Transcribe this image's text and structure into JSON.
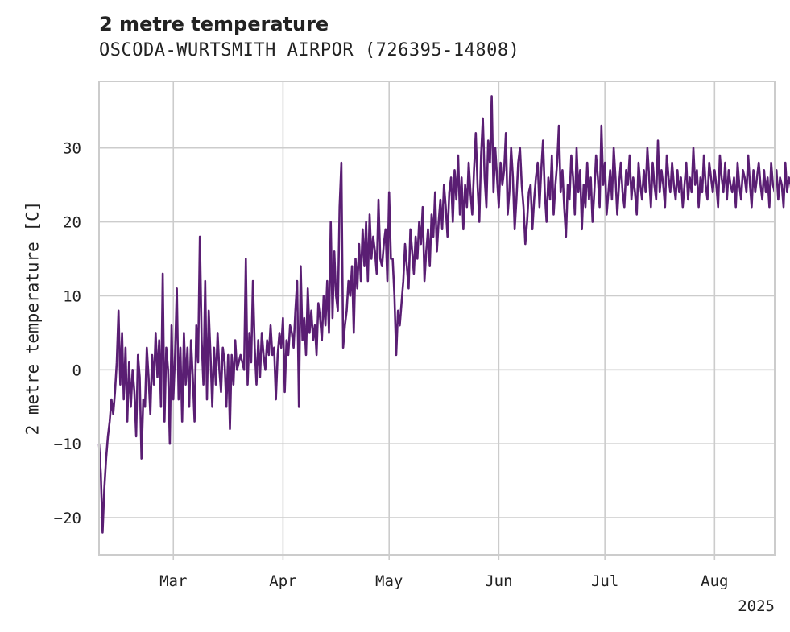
{
  "chart_data": {
    "type": "line",
    "title": "2 metre temperature",
    "subtitle": "OSCODA-WURTSMITH AIRPOR (726395-14808)",
    "xlabel": "",
    "ylabel": "2 metre temperature [C]",
    "ylim": [
      -25,
      39
    ],
    "xlim": [
      "2025-02-08",
      "2025-08-18"
    ],
    "yticks": [
      -20,
      -10,
      0,
      10,
      20,
      30
    ],
    "xticks": [
      {
        "date": "2025-03-01",
        "label": "Mar"
      },
      {
        "date": "2025-04-01",
        "label": "Apr"
      },
      {
        "date": "2025-05-01",
        "label": "May"
      },
      {
        "date": "2025-06-01",
        "label": "Jun"
      },
      {
        "date": "2025-07-01",
        "label": "Jul"
      },
      {
        "date": "2025-08-01",
        "label": "Aug"
      }
    ],
    "year_label": "2025",
    "grid": true,
    "line_color": "#5a1e73",
    "series": [
      {
        "x_start": "2025-02-08",
        "step_hours": 12,
        "values": [
          -10,
          -14,
          -22,
          -16,
          -12,
          -9,
          -7,
          -4,
          -6,
          -3,
          1,
          8,
          -2,
          5,
          -4,
          3,
          -7,
          1,
          -5,
          0,
          -3,
          -9,
          2,
          -1,
          -12,
          -4,
          -5,
          3,
          -1,
          -6,
          2,
          -2,
          5,
          -1,
          4,
          -5,
          13,
          -7,
          3,
          0,
          -10,
          6,
          -4,
          2,
          11,
          -4,
          3,
          -7,
          5,
          -2,
          3,
          -5,
          4,
          -1,
          -7,
          6,
          1,
          18,
          4,
          -2,
          12,
          -4,
          8,
          2,
          -5,
          3,
          -2,
          5,
          0,
          -3,
          3,
          1,
          -5,
          2,
          -8,
          2,
          -2,
          4,
          0,
          1,
          2,
          1,
          0,
          15,
          -2,
          5,
          1,
          12,
          3,
          -2,
          4,
          -1,
          5,
          2,
          0,
          4,
          2,
          6,
          2,
          3,
          -4,
          2,
          5,
          3,
          7,
          -3,
          4,
          2,
          6,
          5,
          3,
          8,
          12,
          -5,
          14,
          4,
          7,
          2,
          11,
          5,
          8,
          4,
          6,
          2,
          9,
          7,
          4,
          10,
          6,
          12,
          5,
          20,
          7,
          16,
          10,
          8,
          22,
          28,
          3,
          6,
          8,
          12,
          10,
          14,
          5,
          15,
          11,
          17,
          12,
          19,
          14,
          20,
          12,
          21,
          15,
          18,
          16,
          13,
          23,
          15,
          14,
          17,
          19,
          12,
          24,
          15,
          15,
          10,
          2,
          8,
          6,
          9,
          12,
          17,
          14,
          11,
          19,
          16,
          13,
          18,
          15,
          20,
          17,
          22,
          12,
          16,
          19,
          14,
          21,
          18,
          24,
          16,
          20,
          23,
          19,
          25,
          22,
          18,
          24,
          26,
          20,
          27,
          23,
          29,
          21,
          26,
          19,
          25,
          22,
          28,
          24,
          21,
          27,
          32,
          25,
          20,
          29,
          34,
          26,
          22,
          31,
          28,
          37,
          24,
          30,
          26,
          22,
          28,
          25,
          27,
          32,
          21,
          24,
          30,
          26,
          19,
          23,
          28,
          30,
          25,
          22,
          17,
          20,
          24,
          25,
          19,
          23,
          26,
          28,
          22,
          27,
          31,
          24,
          20,
          26,
          23,
          29,
          21,
          25,
          28,
          33,
          24,
          27,
          22,
          18,
          25,
          23,
          29,
          26,
          21,
          30,
          24,
          27,
          19,
          25,
          22,
          28,
          23,
          26,
          20,
          24,
          29,
          26,
          22,
          33,
          25,
          28,
          21,
          24,
          27,
          23,
          30,
          26,
          21,
          25,
          28,
          24,
          22,
          27,
          25,
          29,
          23,
          26,
          24,
          21,
          28,
          25,
          23,
          27,
          24,
          30,
          26,
          22,
          28,
          25,
          23,
          31,
          24,
          27,
          25,
          22,
          29,
          26,
          24,
          28,
          25,
          23,
          27,
          24,
          26,
          22,
          25,
          28,
          23,
          26,
          24,
          30,
          25,
          27,
          22,
          26,
          24,
          29,
          25,
          23,
          28,
          26,
          24,
          27,
          25,
          22,
          29,
          26,
          24,
          28,
          23,
          27,
          25,
          24,
          26,
          22,
          28,
          25,
          23,
          27,
          26,
          24,
          29,
          25,
          22,
          27,
          24,
          26,
          28,
          25,
          23,
          27,
          24,
          26,
          22,
          28,
          25,
          24,
          27,
          23,
          26,
          25,
          22,
          28,
          24,
          26,
          25,
          23,
          27,
          24,
          22,
          26,
          25,
          23,
          28,
          24,
          26,
          27,
          25,
          23,
          26,
          24,
          28,
          25,
          22,
          27,
          24,
          26,
          25,
          23,
          27,
          24,
          26,
          22,
          25,
          28,
          24,
          26,
          25,
          23,
          27,
          24,
          25,
          26,
          24,
          22,
          27,
          25,
          24,
          26,
          23,
          28,
          25,
          24,
          26,
          25,
          23,
          27,
          24,
          26
        ]
      }
    ]
  }
}
